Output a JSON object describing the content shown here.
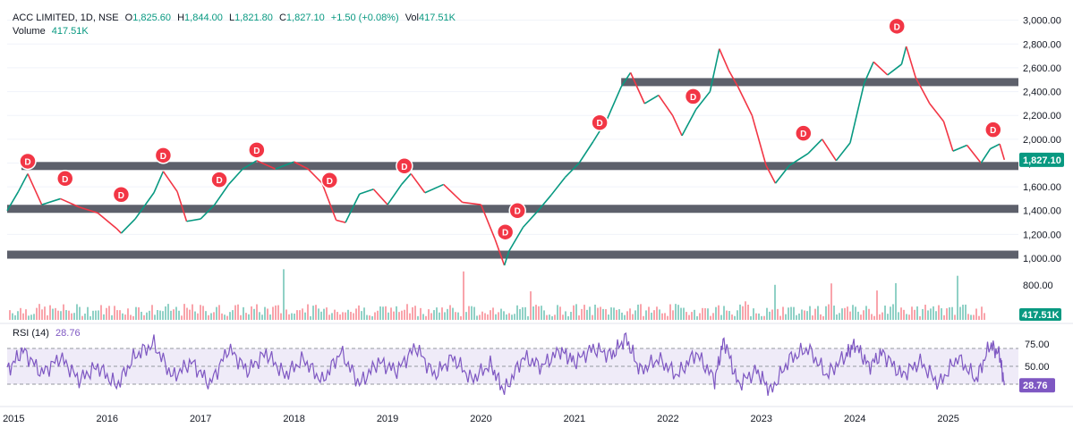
{
  "header": {
    "symbol": "ACC LIMITED, 1D, NSE",
    "open_label": "O",
    "open": "1,825.60",
    "high_label": "H",
    "high": "1,844.00",
    "low_label": "L",
    "low": "1,821.80",
    "close_label": "C",
    "close": "1,827.10",
    "change": "+1.50 (+0.08%)",
    "vol_label": "Vol",
    "vol": "417.51K"
  },
  "volume_legend": {
    "label": "Volume",
    "value": "417.51K"
  },
  "rsi_legend": {
    "label": "RSI (14)",
    "value": "28.76"
  },
  "colors": {
    "up": "#089981",
    "down": "#f23645",
    "rsi": "#7e57c2",
    "band": "#5d606b",
    "marker": "#f23645",
    "last_price": "#089981"
  },
  "chart_data": [
    {
      "type": "line",
      "title": "ACC LIMITED, 1D, NSE",
      "price_axis_ticks": [
        1000,
        1200,
        1400,
        1600,
        1800,
        2000,
        2200,
        2400,
        2600,
        2800,
        3000
      ],
      "price_axis_labels": [
        "1,000.00",
        "1,200.00",
        "1,400.00",
        "1,600.00",
        "1,800.00",
        "2,000.00",
        "2,200.00",
        "2,400.00",
        "2,600.00",
        "2,800.00",
        "3,000.00"
      ],
      "ylim": [
        880,
        3080
      ],
      "x_ticks": [
        "2015",
        "2016",
        "2017",
        "2018",
        "2019",
        "2020",
        "2021",
        "2022",
        "2023",
        "2024",
        "2025"
      ],
      "xlim": [
        2014.93,
        2025.75
      ],
      "series": [
        {
          "x": [
            2014.93,
            2015.05,
            2015.15,
            2015.3,
            2015.5,
            2015.7,
            2015.9,
            2016.1,
            2016.15,
            2016.3,
            2016.5,
            2016.6,
            2016.75,
            2016.85,
            2017.0,
            2017.15,
            2017.3,
            2017.45,
            2017.6,
            2017.8,
            2018.0,
            2018.15,
            2018.3,
            2018.45,
            2018.55,
            2018.7,
            2018.85,
            2019.0,
            2019.15,
            2019.25,
            2019.4,
            2019.6,
            2019.8,
            2020.0,
            2020.15,
            2020.25,
            2020.3,
            2020.45,
            2020.6,
            2020.75,
            2020.9,
            2021.05,
            2021.2,
            2021.35,
            2021.5,
            2021.6,
            2021.75,
            2021.9,
            2022.05,
            2022.15,
            2022.3,
            2022.45,
            2022.55,
            2022.65,
            2022.75,
            2022.9,
            2023.05,
            2023.15,
            2023.3,
            2023.5,
            2023.65,
            2023.8,
            2023.95,
            2024.1,
            2024.2,
            2024.35,
            2024.5,
            2024.55,
            2024.65,
            2024.8,
            2024.95,
            2025.05,
            2025.2,
            2025.35,
            2025.45,
            2025.55,
            2025.6
          ],
          "y": [
            1400,
            1560,
            1710,
            1450,
            1500,
            1430,
            1380,
            1250,
            1210,
            1330,
            1550,
            1730,
            1560,
            1310,
            1330,
            1450,
            1620,
            1750,
            1820,
            1750,
            1810,
            1750,
            1630,
            1320,
            1300,
            1540,
            1580,
            1450,
            1620,
            1710,
            1550,
            1620,
            1470,
            1450,
            1160,
            940,
            1060,
            1260,
            1390,
            1530,
            1680,
            1800,
            1980,
            2170,
            2440,
            2560,
            2300,
            2370,
            2200,
            2030,
            2250,
            2400,
            2760,
            2580,
            2440,
            2200,
            1780,
            1630,
            1780,
            1880,
            2000,
            1820,
            1970,
            2470,
            2650,
            2540,
            2630,
            2780,
            2520,
            2300,
            2150,
            1900,
            1950,
            1800,
            1920,
            1960,
            1827
          ]
        }
      ],
      "support_resistance_bands": [
        1030,
        1415,
        1775,
        2480
      ],
      "markers": {
        "label": "D",
        "points": [
          {
            "x": 2015.15,
            "y": 1815
          },
          {
            "x": 2015.55,
            "y": 1670
          },
          {
            "x": 2016.15,
            "y": 1535
          },
          {
            "x": 2016.6,
            "y": 1865
          },
          {
            "x": 2017.2,
            "y": 1660
          },
          {
            "x": 2017.6,
            "y": 1910
          },
          {
            "x": 2018.38,
            "y": 1655
          },
          {
            "x": 2019.18,
            "y": 1775
          },
          {
            "x": 2020.26,
            "y": 1220
          },
          {
            "x": 2020.39,
            "y": 1400
          },
          {
            "x": 2021.27,
            "y": 2140
          },
          {
            "x": 2022.27,
            "y": 2360
          },
          {
            "x": 2023.45,
            "y": 2050
          },
          {
            "x": 2024.45,
            "y": 2950
          },
          {
            "x": 2025.48,
            "y": 2080
          }
        ]
      },
      "last_price_label": "1,827.10"
    },
    {
      "type": "bar",
      "title": "Volume",
      "last_value_label": "417.51K",
      "partial_tick_label": "800.00"
    },
    {
      "type": "line",
      "title": "RSI (14)",
      "ylim": [
        15,
        88
      ],
      "ticks": [
        75,
        50
      ],
      "tick_labels": [
        "75.00",
        "50.00"
      ],
      "band": [
        30,
        70
      ],
      "x": [
        2014.93,
        2015.1,
        2015.3,
        2015.5,
        2015.7,
        2015.9,
        2016.1,
        2016.3,
        2016.5,
        2016.7,
        2016.9,
        2017.1,
        2017.3,
        2017.5,
        2017.7,
        2017.9,
        2018.1,
        2018.3,
        2018.5,
        2018.7,
        2018.9,
        2019.1,
        2019.3,
        2019.5,
        2019.7,
        2019.9,
        2020.1,
        2020.25,
        2020.45,
        2020.65,
        2020.85,
        2021.0,
        2021.2,
        2021.4,
        2021.55,
        2021.7,
        2021.9,
        2022.1,
        2022.3,
        2022.5,
        2022.6,
        2022.75,
        2022.95,
        2023.1,
        2023.3,
        2023.5,
        2023.7,
        2023.9,
        2024.0,
        2024.15,
        2024.3,
        2024.5,
        2024.7,
        2024.9,
        2025.1,
        2025.3,
        2025.45,
        2025.55,
        2025.6
      ],
      "y": [
        45,
        68,
        42,
        60,
        35,
        50,
        28,
        62,
        75,
        38,
        55,
        30,
        70,
        45,
        65,
        40,
        58,
        33,
        66,
        30,
        55,
        45,
        72,
        40,
        60,
        35,
        52,
        22,
        60,
        50,
        68,
        55,
        70,
        62,
        82,
        45,
        58,
        40,
        65,
        35,
        80,
        30,
        45,
        22,
        58,
        70,
        40,
        62,
        75,
        50,
        65,
        40,
        55,
        30,
        60,
        35,
        75,
        62,
        28.76
      ],
      "last_value_label": "28.76"
    }
  ]
}
